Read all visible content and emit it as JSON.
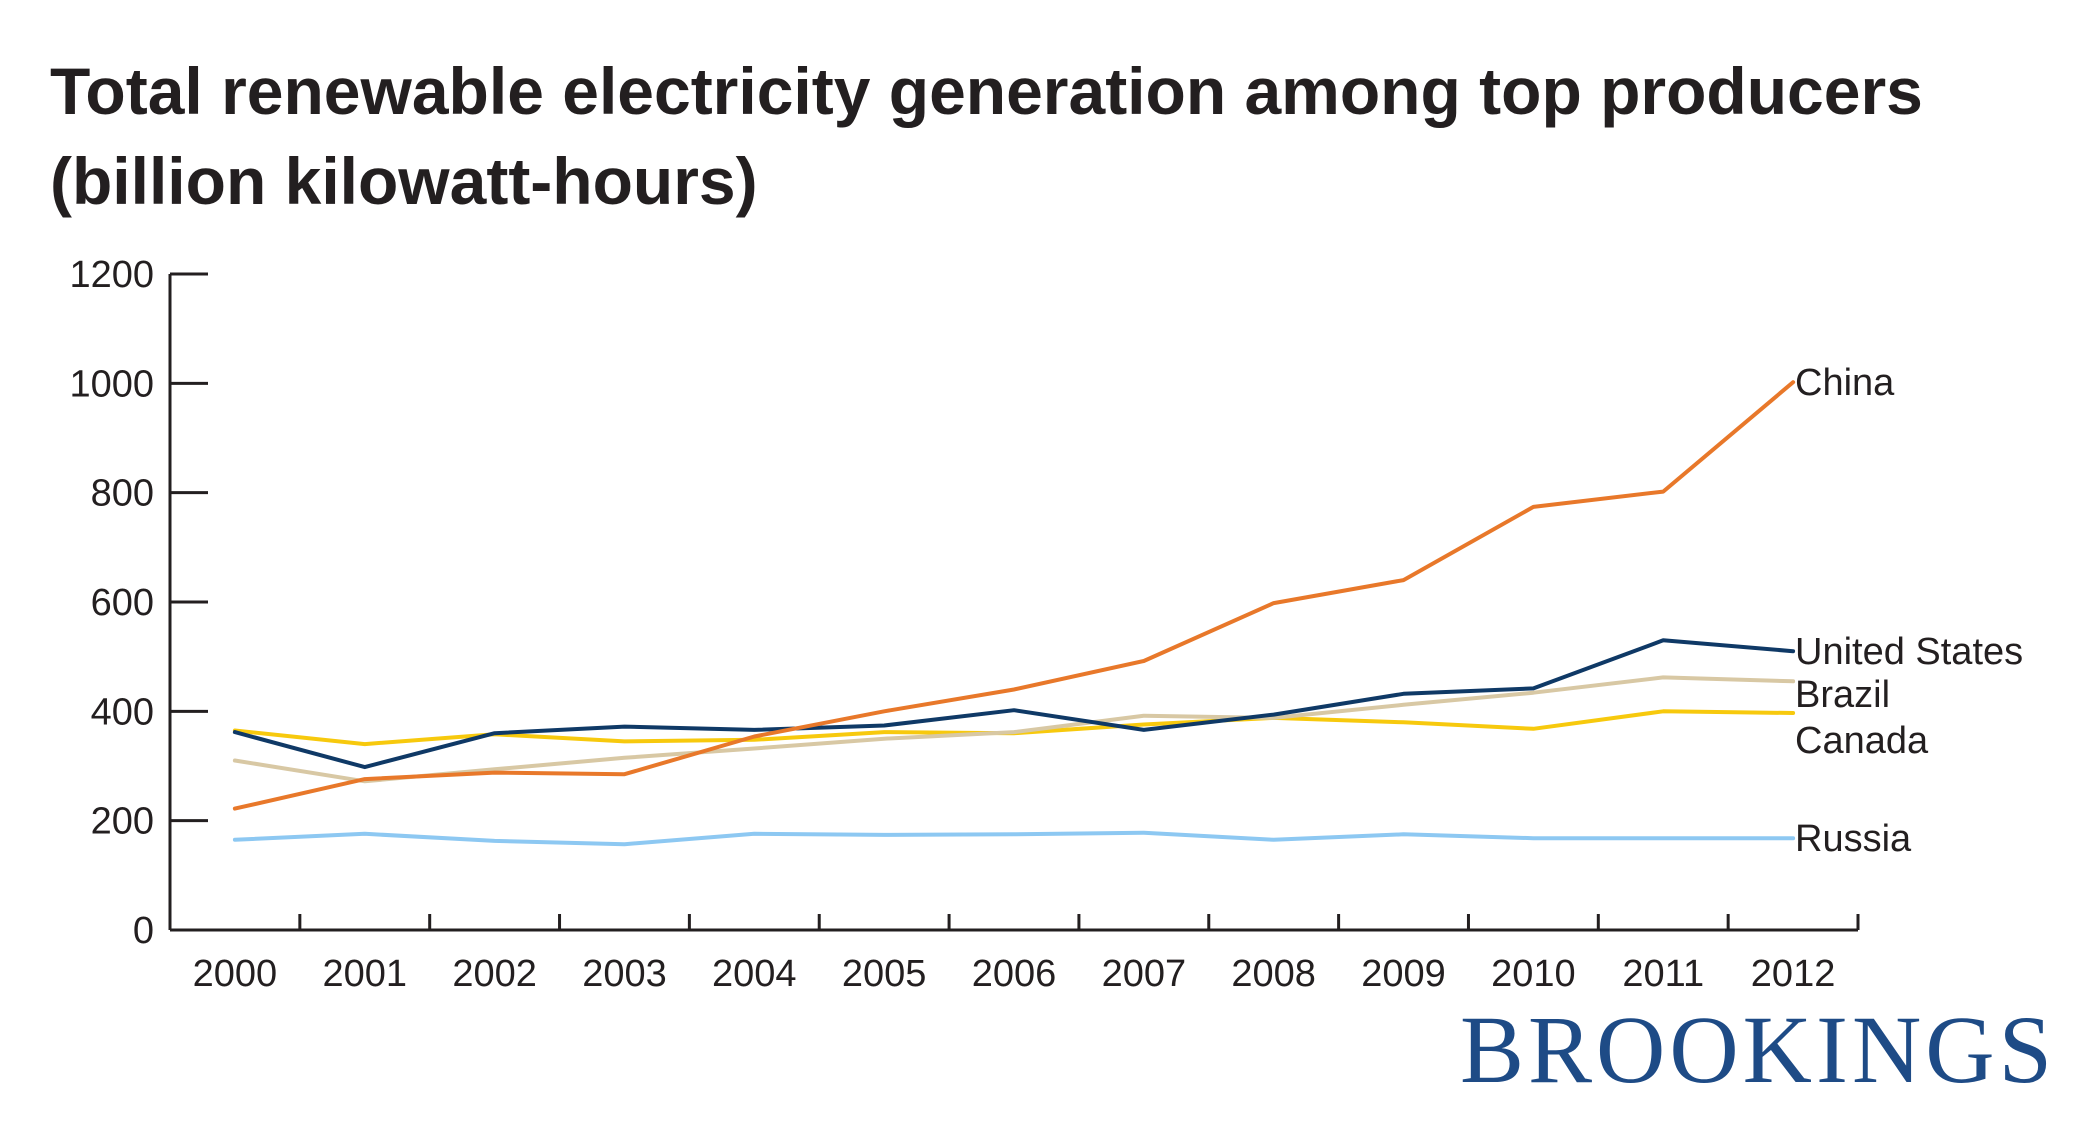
{
  "chart_data": {
    "type": "line",
    "title": "Total renewable electricity generation among top producers (billion kilowatt-hours)",
    "xlabel": "",
    "ylabel": "",
    "x": [
      "2000",
      "2001",
      "2002",
      "2003",
      "2004",
      "2005",
      "2006",
      "2007",
      "2008",
      "2009",
      "2010",
      "2011",
      "2012"
    ],
    "ylim": [
      0,
      1200
    ],
    "yticks": [
      0,
      200,
      400,
      600,
      800,
      1000,
      1200
    ],
    "grid": false,
    "legend": "direct labels at line ends (right)",
    "series": [
      {
        "name": "Russia",
        "color": "#8dc8f2",
        "values": [
          165,
          176,
          163,
          157,
          176,
          174,
          175,
          178,
          165,
          175,
          168,
          168,
          168
        ]
      },
      {
        "name": "Canada",
        "color": "#f7c90d",
        "values": [
          365,
          340,
          358,
          345,
          348,
          362,
          360,
          376,
          388,
          380,
          368,
          400,
          397
        ]
      },
      {
        "name": "Brazil",
        "color": "#d8c8a4",
        "values": [
          310,
          272,
          294,
          315,
          332,
          350,
          362,
          392,
          388,
          412,
          434,
          462,
          455
        ]
      },
      {
        "name": "United States",
        "color": "#0f3966",
        "values": [
          362,
          298,
          360,
          372,
          366,
          374,
          402,
          366,
          394,
          432,
          442,
          530,
          510
        ]
      },
      {
        "name": "China",
        "color": "#e8782a",
        "values": [
          222,
          276,
          288,
          285,
          354,
          400,
          440,
          492,
          598,
          640,
          774,
          802,
          1002
        ]
      }
    ]
  },
  "branding": {
    "logo_text": "BROOKINGS"
  }
}
